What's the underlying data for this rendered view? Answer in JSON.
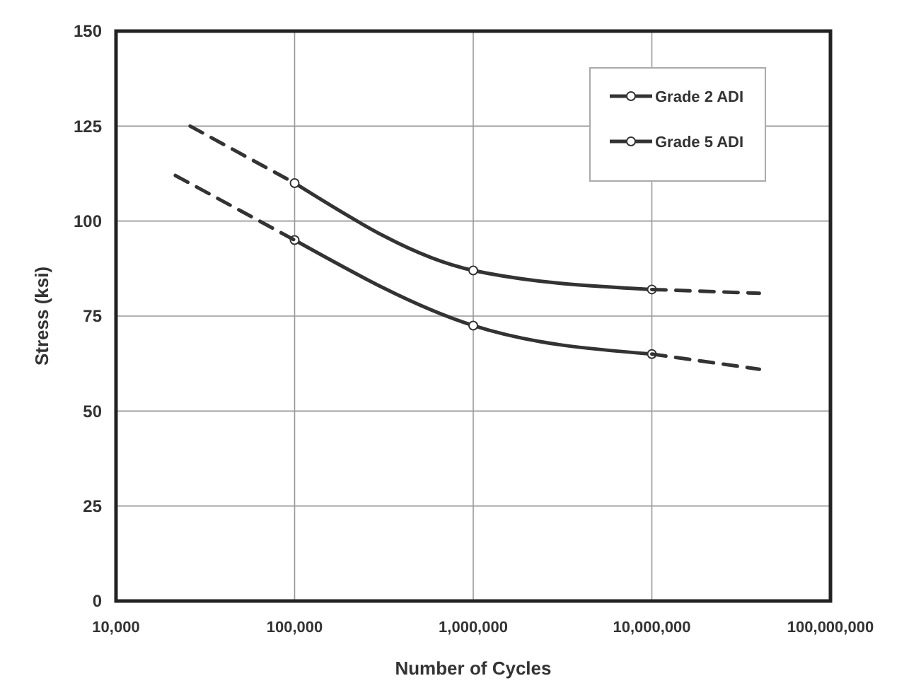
{
  "chart_data": {
    "type": "line",
    "xlabel": "Number of Cycles",
    "ylabel": "Stress (ksi)",
    "log": "x",
    "xlim": [
      10000,
      100000000
    ],
    "xticks": [
      {
        "value": 10000,
        "label": "10,000"
      },
      {
        "value": 100000,
        "label": "100,000"
      },
      {
        "value": 1000000,
        "label": "1,000,000"
      },
      {
        "value": 10000000,
        "label": "10,000,000"
      },
      {
        "value": 100000000,
        "label": "100,000,000"
      }
    ],
    "ylim": [
      0,
      150
    ],
    "yticks": [
      0,
      25,
      50,
      75,
      100,
      125,
      150
    ],
    "grid": true,
    "legend": "top right",
    "series": [
      {
        "name": "Grade 2 ADI",
        "color": "#333333",
        "x": [
          100000,
          1000000,
          10000000
        ],
        "values": [
          110,
          87,
          82
        ],
        "marker": "circle",
        "line_style": "solid"
      },
      {
        "name": "Grade 5 ADI",
        "color": "#333333",
        "x": [
          100000,
          1000000,
          10000000
        ],
        "values": [
          95,
          72.5,
          65
        ],
        "marker": "circle",
        "line_style": "solid"
      },
      {
        "color": "#333333",
        "x": [
          26000,
          100000
        ],
        "values": [
          125,
          110
        ],
        "marker": "none",
        "line_style": "dashed"
      },
      {
        "color": "#333333",
        "x": [
          10000000,
          40000000
        ],
        "values": [
          82,
          81
        ],
        "marker": "none",
        "line_style": "dashed"
      },
      {
        "color": "#333333",
        "x": [
          21500,
          100000
        ],
        "values": [
          112,
          95
        ],
        "marker": "none",
        "line_style": "dashed"
      },
      {
        "color": "#333333",
        "x": [
          10000000,
          40000000
        ],
        "values": [
          65,
          61
        ],
        "marker": "none",
        "line_style": "dashed"
      }
    ]
  }
}
